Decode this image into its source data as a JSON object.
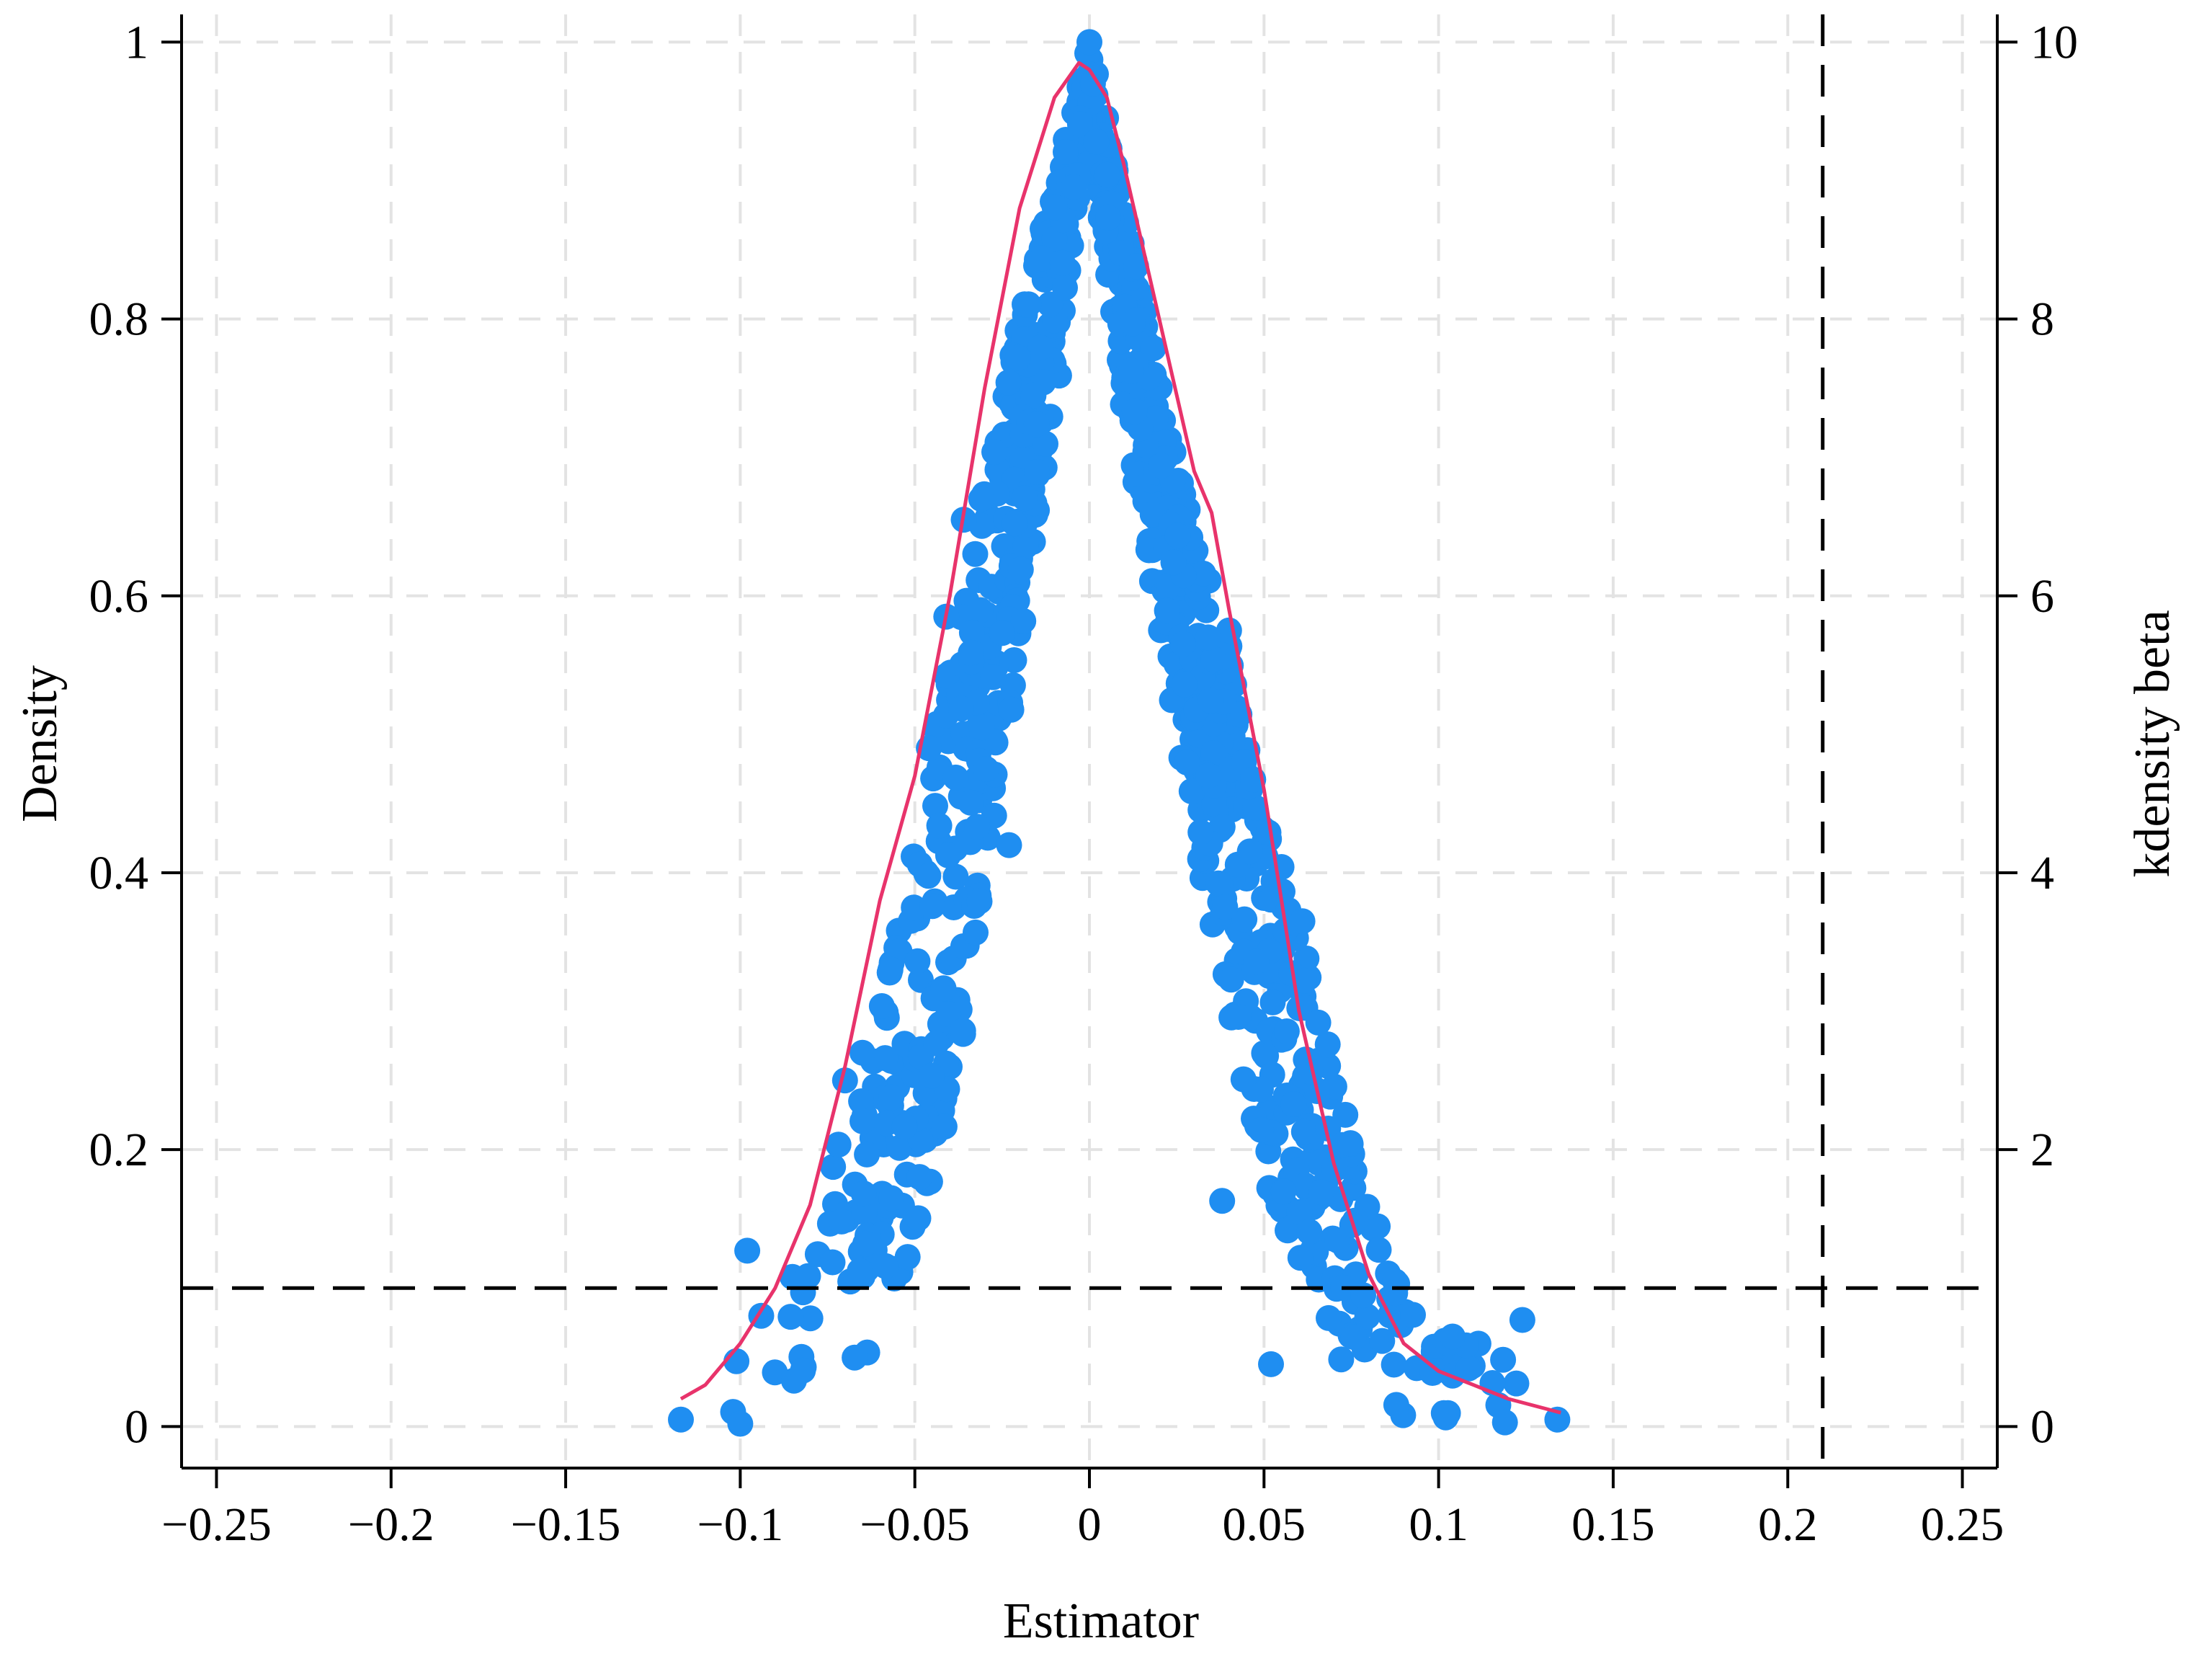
{
  "chart_data": {
    "type": "scatter",
    "xlabel": "Estimator",
    "ylabel": "Density",
    "y2label": "kdensity beta",
    "xlim": [
      -0.26,
      0.26
    ],
    "ylim": [
      -0.03,
      1.02
    ],
    "y2lim": [
      -0.3,
      10.2
    ],
    "xticks": [
      -0.25,
      -0.2,
      -0.15,
      -0.1,
      -0.05,
      0,
      0.05,
      0.1,
      0.15,
      0.2,
      0.25
    ],
    "xtick_labels": [
      "−0.25",
      "−0.2",
      "−0.15",
      "−0.1",
      "−0.05",
      "0",
      "0.05",
      "0.1",
      "0.15",
      "0.2",
      "0.25"
    ],
    "yticks": [
      0,
      0.2,
      0.4,
      0.6,
      0.8,
      1
    ],
    "ytick_labels": [
      "0",
      "0.2",
      "0.4",
      "0.6",
      "0.8",
      "1"
    ],
    "y2ticks": [
      0,
      2,
      4,
      6,
      8,
      10
    ],
    "y2tick_labels": [
      "0",
      "2",
      "4",
      "6",
      "8",
      "10"
    ],
    "grid": true,
    "legend": "none",
    "reference_lines": [
      {
        "orientation": "horizontal",
        "y": 0.1,
        "style": "dashed"
      },
      {
        "orientation": "vertical",
        "x": 0.21,
        "style": "dashed"
      }
    ],
    "colors": {
      "points": "#1f8ef1",
      "density": "#e8336b",
      "reference": "#000000",
      "grid": "#e3e3e3"
    },
    "series": [
      {
        "kind": "scatter",
        "envelope": {
          "x": [
            -0.118,
            -0.11,
            -0.1,
            -0.09,
            -0.08,
            -0.07,
            -0.06,
            -0.05,
            -0.04,
            -0.03,
            -0.02,
            -0.01,
            -0.004,
            0.0,
            0.004,
            0.01,
            0.02,
            0.03,
            0.04,
            0.05,
            0.06,
            0.07,
            0.08,
            0.09,
            0.1,
            0.11,
            0.12,
            0.135
          ],
          "upper": [
            0.02,
            0.04,
            0.07,
            0.1,
            0.15,
            0.22,
            0.3,
            0.42,
            0.56,
            0.68,
            0.8,
            0.9,
            0.96,
            1.0,
            0.96,
            0.88,
            0.76,
            0.65,
            0.57,
            0.45,
            0.36,
            0.26,
            0.17,
            0.1,
            0.07,
            0.06,
            0.07,
            0.01
          ],
          "lower": [
            0.005,
            0.005,
            0.005,
            0.01,
            0.02,
            0.04,
            0.06,
            0.12,
            0.22,
            0.38,
            0.55,
            0.72,
            0.88,
            0.9,
            0.86,
            0.72,
            0.58,
            0.42,
            0.3,
            0.18,
            0.1,
            0.05,
            0.02,
            0.005,
            0.005,
            0.005,
            0.005,
            0.005
          ]
        },
        "outliers": [
          {
            "x": -0.098,
            "y": 0.127
          },
          {
            "x": -0.094,
            "y": 0.08
          },
          {
            "x": -0.041,
            "y": 0.585
          },
          {
            "x": -0.036,
            "y": 0.655
          },
          {
            "x": -0.031,
            "y": 0.67
          },
          {
            "x": -0.046,
            "y": 0.49
          },
          {
            "x": -0.057,
            "y": 0.33
          },
          {
            "x": -0.065,
            "y": 0.27
          },
          {
            "x": -0.07,
            "y": 0.25
          },
          {
            "x": -0.023,
            "y": 0.42
          },
          {
            "x": 0.04,
            "y": 0.575
          },
          {
            "x": 0.034,
            "y": 0.57
          },
          {
            "x": 0.038,
            "y": 0.163
          },
          {
            "x": 0.061,
            "y": 0.365
          },
          {
            "x": 0.052,
            "y": 0.045
          },
          {
            "x": 0.104,
            "y": 0.065
          },
          {
            "x": 0.124,
            "y": 0.077
          },
          {
            "x": 0.119,
            "y": 0.003
          },
          {
            "x": 0.134,
            "y": 0.005
          },
          {
            "x": -0.1,
            "y": 0.002
          },
          {
            "x": -0.117,
            "y": 0.005
          },
          {
            "x": 0.0,
            "y": 1.0
          }
        ]
      },
      {
        "kind": "line",
        "axis": "y2",
        "x": [
          -0.117,
          -0.11,
          -0.1,
          -0.09,
          -0.08,
          -0.07,
          -0.06,
          -0.05,
          -0.04,
          -0.03,
          -0.02,
          -0.01,
          -0.003,
          0.0,
          0.005,
          0.01,
          0.02,
          0.03,
          0.035,
          0.04,
          0.05,
          0.06,
          0.07,
          0.08,
          0.09,
          0.1,
          0.11,
          0.12,
          0.135
        ],
        "y": [
          0.2,
          0.3,
          0.6,
          1.0,
          1.6,
          2.6,
          3.8,
          4.7,
          6.0,
          7.5,
          8.8,
          9.6,
          9.85,
          9.8,
          9.6,
          9.1,
          8.0,
          6.9,
          6.6,
          5.9,
          4.6,
          3.0,
          1.9,
          1.1,
          0.6,
          0.4,
          0.3,
          0.2,
          0.1
        ]
      }
    ]
  }
}
